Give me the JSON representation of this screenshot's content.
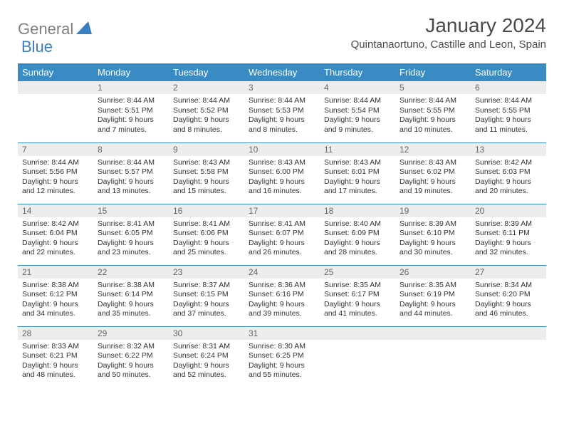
{
  "logo": {
    "general": "General",
    "blue": "Blue"
  },
  "title": "January 2024",
  "location": "Quintanaortuno, Castille and Leon, Spain",
  "colors": {
    "header_bg": "#3a8ac4",
    "header_fg": "#ffffff",
    "daynum_bg": "#ededed",
    "border": "#3a8ac4",
    "logo_gray": "#808080",
    "logo_blue": "#3a7ebf"
  },
  "weekdays": [
    "Sunday",
    "Monday",
    "Tuesday",
    "Wednesday",
    "Thursday",
    "Friday",
    "Saturday"
  ],
  "weeks": [
    [
      null,
      {
        "n": "1",
        "sr": "8:44 AM",
        "ss": "5:51 PM",
        "dl": "9 hours and 7 minutes."
      },
      {
        "n": "2",
        "sr": "8:44 AM",
        "ss": "5:52 PM",
        "dl": "9 hours and 8 minutes."
      },
      {
        "n": "3",
        "sr": "8:44 AM",
        "ss": "5:53 PM",
        "dl": "9 hours and 8 minutes."
      },
      {
        "n": "4",
        "sr": "8:44 AM",
        "ss": "5:54 PM",
        "dl": "9 hours and 9 minutes."
      },
      {
        "n": "5",
        "sr": "8:44 AM",
        "ss": "5:55 PM",
        "dl": "9 hours and 10 minutes."
      },
      {
        "n": "6",
        "sr": "8:44 AM",
        "ss": "5:55 PM",
        "dl": "9 hours and 11 minutes."
      }
    ],
    [
      {
        "n": "7",
        "sr": "8:44 AM",
        "ss": "5:56 PM",
        "dl": "9 hours and 12 minutes."
      },
      {
        "n": "8",
        "sr": "8:44 AM",
        "ss": "5:57 PM",
        "dl": "9 hours and 13 minutes."
      },
      {
        "n": "9",
        "sr": "8:43 AM",
        "ss": "5:58 PM",
        "dl": "9 hours and 15 minutes."
      },
      {
        "n": "10",
        "sr": "8:43 AM",
        "ss": "6:00 PM",
        "dl": "9 hours and 16 minutes."
      },
      {
        "n": "11",
        "sr": "8:43 AM",
        "ss": "6:01 PM",
        "dl": "9 hours and 17 minutes."
      },
      {
        "n": "12",
        "sr": "8:43 AM",
        "ss": "6:02 PM",
        "dl": "9 hours and 19 minutes."
      },
      {
        "n": "13",
        "sr": "8:42 AM",
        "ss": "6:03 PM",
        "dl": "9 hours and 20 minutes."
      }
    ],
    [
      {
        "n": "14",
        "sr": "8:42 AM",
        "ss": "6:04 PM",
        "dl": "9 hours and 22 minutes."
      },
      {
        "n": "15",
        "sr": "8:41 AM",
        "ss": "6:05 PM",
        "dl": "9 hours and 23 minutes."
      },
      {
        "n": "16",
        "sr": "8:41 AM",
        "ss": "6:06 PM",
        "dl": "9 hours and 25 minutes."
      },
      {
        "n": "17",
        "sr": "8:41 AM",
        "ss": "6:07 PM",
        "dl": "9 hours and 26 minutes."
      },
      {
        "n": "18",
        "sr": "8:40 AM",
        "ss": "6:09 PM",
        "dl": "9 hours and 28 minutes."
      },
      {
        "n": "19",
        "sr": "8:39 AM",
        "ss": "6:10 PM",
        "dl": "9 hours and 30 minutes."
      },
      {
        "n": "20",
        "sr": "8:39 AM",
        "ss": "6:11 PM",
        "dl": "9 hours and 32 minutes."
      }
    ],
    [
      {
        "n": "21",
        "sr": "8:38 AM",
        "ss": "6:12 PM",
        "dl": "9 hours and 34 minutes."
      },
      {
        "n": "22",
        "sr": "8:38 AM",
        "ss": "6:14 PM",
        "dl": "9 hours and 35 minutes."
      },
      {
        "n": "23",
        "sr": "8:37 AM",
        "ss": "6:15 PM",
        "dl": "9 hours and 37 minutes."
      },
      {
        "n": "24",
        "sr": "8:36 AM",
        "ss": "6:16 PM",
        "dl": "9 hours and 39 minutes."
      },
      {
        "n": "25",
        "sr": "8:35 AM",
        "ss": "6:17 PM",
        "dl": "9 hours and 41 minutes."
      },
      {
        "n": "26",
        "sr": "8:35 AM",
        "ss": "6:19 PM",
        "dl": "9 hours and 44 minutes."
      },
      {
        "n": "27",
        "sr": "8:34 AM",
        "ss": "6:20 PM",
        "dl": "9 hours and 46 minutes."
      }
    ],
    [
      {
        "n": "28",
        "sr": "8:33 AM",
        "ss": "6:21 PM",
        "dl": "9 hours and 48 minutes."
      },
      {
        "n": "29",
        "sr": "8:32 AM",
        "ss": "6:22 PM",
        "dl": "9 hours and 50 minutes."
      },
      {
        "n": "30",
        "sr": "8:31 AM",
        "ss": "6:24 PM",
        "dl": "9 hours and 52 minutes."
      },
      {
        "n": "31",
        "sr": "8:30 AM",
        "ss": "6:25 PM",
        "dl": "9 hours and 55 minutes."
      },
      null,
      null,
      null
    ]
  ],
  "labels": {
    "sunrise": "Sunrise:",
    "sunset": "Sunset:",
    "daylight": "Daylight:"
  }
}
